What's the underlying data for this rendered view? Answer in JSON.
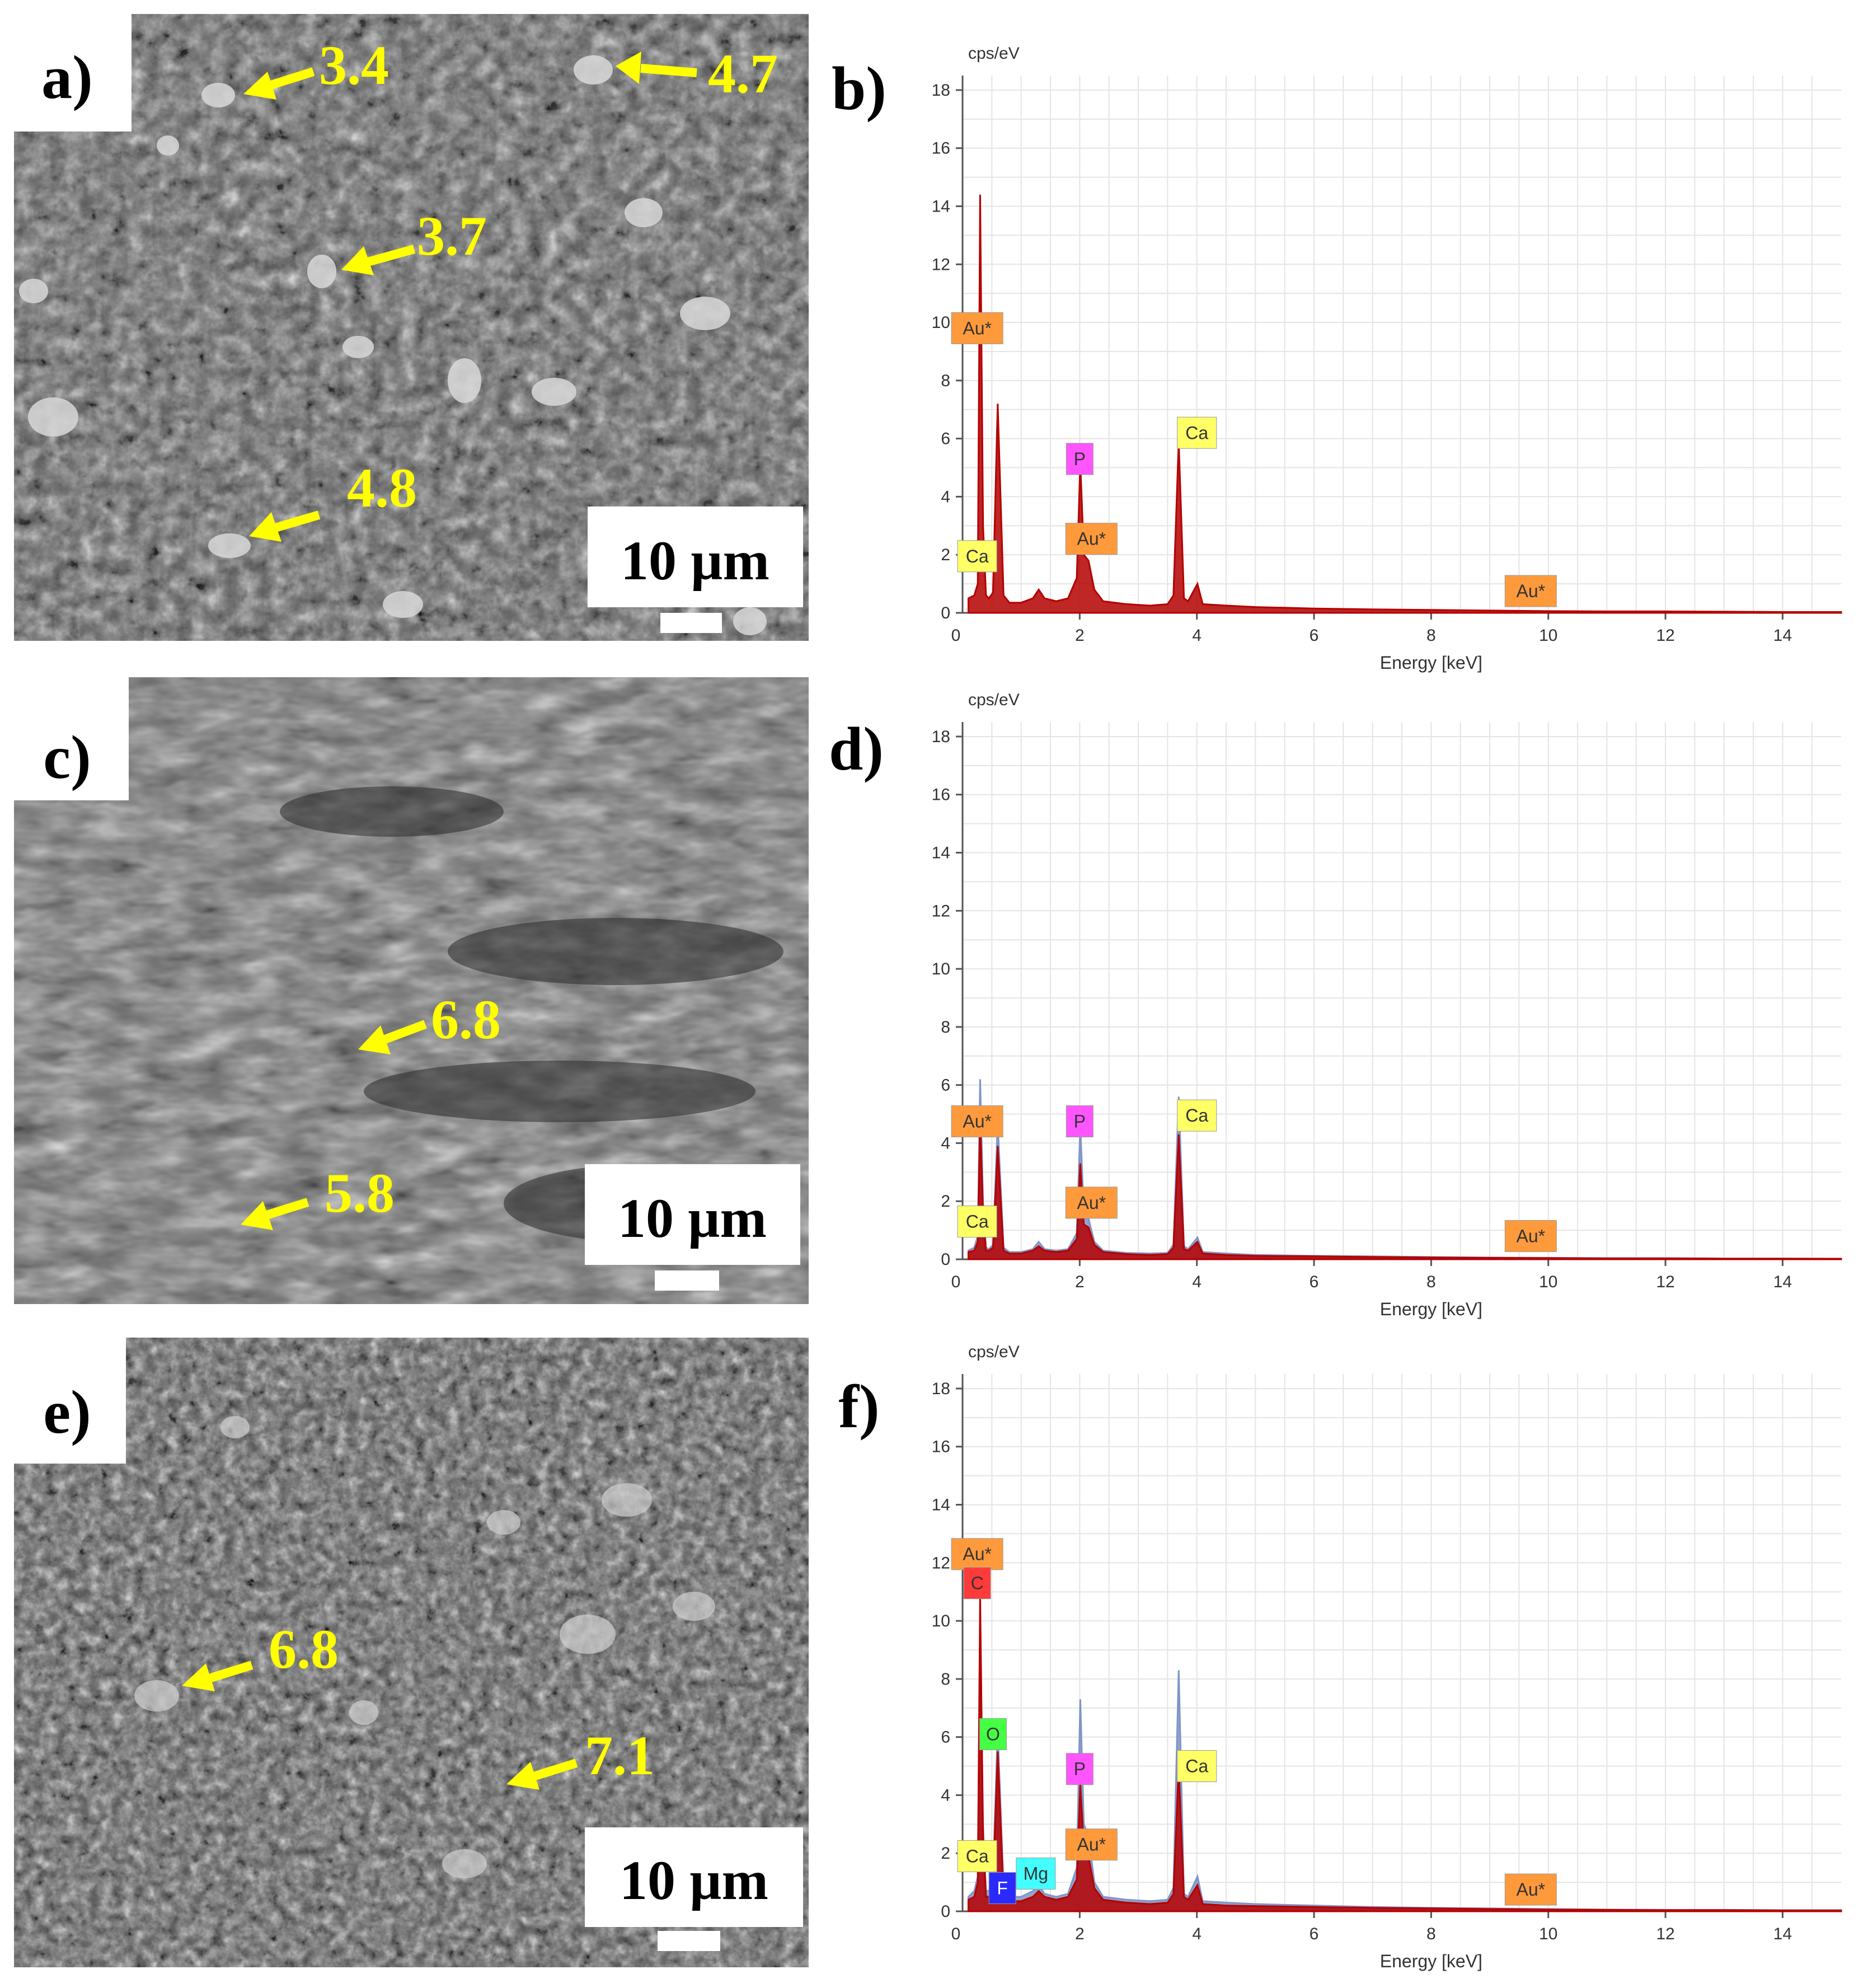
{
  "panels": [
    {
      "label": "a)",
      "scale_bar": "10 µm",
      "arrows": [
        {
          "label": "3.4"
        },
        {
          "label": "4.7"
        },
        {
          "label": "3.7"
        },
        {
          "label": "4.8"
        }
      ]
    },
    {
      "label": "c)",
      "scale_bar": "10 µm",
      "arrows": [
        {
          "label": "6.8"
        },
        {
          "label": "5.8"
        }
      ]
    },
    {
      "label": "e)",
      "scale_bar": "10 µm",
      "arrows": [
        {
          "label": "6.8"
        },
        {
          "label": "7.1"
        }
      ]
    }
  ],
  "spectra_labels": [
    "b)",
    "d)",
    "f)"
  ],
  "colors": {
    "arrow": "#ffff00",
    "spectrum_red": "#b40000",
    "spectrum_blue": "#7f95c8",
    "grid": "#e4e4e4",
    "tag_Au": "#ff9a3c",
    "tag_Ca": "#ffff66",
    "tag_P": "#ff55ff",
    "tag_C": "#ff3a3a",
    "tag_O": "#44ff44",
    "tag_F": "#2a2aff",
    "tag_Mg": "#44ffff"
  },
  "chart_data": [
    {
      "type": "line",
      "panel": "b)",
      "xlabel": "Energy [keV]",
      "ylabel": "cps/eV",
      "xlim": [
        0,
        15
      ],
      "ylim": [
        0,
        18.5
      ],
      "xticks": [
        2,
        4,
        6,
        8,
        10,
        12,
        14
      ],
      "yticks": [
        0,
        2,
        4,
        6,
        8,
        10,
        12,
        14,
        16,
        18
      ],
      "grid": true,
      "series": [
        {
          "color": "red",
          "x": [
            0.1,
            0.2,
            0.26,
            0.3,
            0.35,
            0.4,
            0.45,
            0.52,
            0.6,
            0.7,
            0.8,
            1.0,
            1.2,
            1.3,
            1.4,
            1.6,
            1.8,
            1.95,
            2.01,
            2.07,
            2.15,
            2.25,
            2.4,
            2.8,
            3.2,
            3.5,
            3.6,
            3.69,
            3.78,
            3.85,
            4.01,
            4.1,
            4.5,
            5.0,
            6.0,
            7.0,
            8.0,
            9.0,
            10.0,
            11.0,
            12.0,
            13.0,
            14.0,
            15.0
          ],
          "y": [
            0.5,
            0.6,
            1.0,
            14.4,
            3.0,
            0.6,
            0.5,
            0.7,
            7.2,
            0.6,
            0.35,
            0.35,
            0.5,
            0.8,
            0.5,
            0.4,
            0.5,
            1.2,
            5.2,
            2.0,
            1.8,
            0.8,
            0.4,
            0.3,
            0.25,
            0.3,
            0.6,
            5.9,
            0.5,
            0.4,
            1.0,
            0.3,
            0.25,
            0.2,
            0.15,
            0.12,
            0.1,
            0.08,
            0.06,
            0.05,
            0.05,
            0.04,
            0.03,
            0.03
          ]
        }
      ],
      "annotations": [
        {
          "text": "Au*",
          "x": 0.25,
          "y": 9.8,
          "tag": "Au"
        },
        {
          "text": "Ca",
          "x": 0.25,
          "y": 1.95,
          "tag": "Ca"
        },
        {
          "text": "P",
          "x": 2.0,
          "y": 5.3,
          "tag": "P"
        },
        {
          "text": "Au*",
          "x": 2.2,
          "y": 2.55,
          "tag": "Au"
        },
        {
          "text": "Ca",
          "x": 4.0,
          "y": 6.2,
          "tag": "Ca"
        },
        {
          "text": "Au*",
          "x": 9.7,
          "y": 0.75,
          "tag": "Au"
        }
      ]
    },
    {
      "type": "line",
      "panel": "d)",
      "xlabel": "Energy [keV]",
      "ylabel": "cps/eV",
      "xlim": [
        0,
        15
      ],
      "ylim": [
        0,
        18.5
      ],
      "xticks": [
        2,
        4,
        6,
        8,
        10,
        12,
        14
      ],
      "yticks": [
        0,
        2,
        4,
        6,
        8,
        10,
        12,
        14,
        16,
        18
      ],
      "grid": true,
      "series": [
        {
          "color": "blue",
          "x": [
            0.1,
            0.2,
            0.26,
            0.3,
            0.35,
            0.4,
            0.45,
            0.52,
            0.6,
            0.7,
            0.8,
            1.0,
            1.2,
            1.3,
            1.4,
            1.6,
            1.8,
            1.95,
            2.01,
            2.07,
            2.15,
            2.25,
            2.4,
            2.8,
            3.2,
            3.5,
            3.6,
            3.69,
            3.78,
            3.85,
            4.01,
            4.1,
            4.5,
            5.0,
            6.0,
            7.0,
            8.0,
            9.0,
            10.0,
            11.0,
            12.0,
            13.0,
            14.0,
            15.0
          ],
          "y": [
            0.3,
            0.4,
            0.8,
            6.2,
            2.0,
            0.4,
            0.35,
            0.5,
            4.7,
            0.4,
            0.25,
            0.25,
            0.35,
            0.6,
            0.35,
            0.3,
            0.35,
            0.9,
            4.6,
            1.6,
            1.4,
            0.6,
            0.3,
            0.22,
            0.2,
            0.22,
            0.5,
            5.6,
            0.45,
            0.35,
            0.75,
            0.25,
            0.2,
            0.15,
            0.12,
            0.1,
            0.08,
            0.06,
            0.05,
            0.04,
            0.04,
            0.03,
            0.03,
            0.02
          ]
        },
        {
          "color": "red",
          "x": [
            0.1,
            0.2,
            0.26,
            0.3,
            0.35,
            0.4,
            0.45,
            0.52,
            0.6,
            0.7,
            0.8,
            1.0,
            1.2,
            1.3,
            1.4,
            1.6,
            1.8,
            1.95,
            2.01,
            2.07,
            2.15,
            2.25,
            2.4,
            2.8,
            3.2,
            3.5,
            3.6,
            3.69,
            3.78,
            3.85,
            4.01,
            4.1,
            4.5,
            5.0,
            6.0,
            7.0,
            8.0,
            9.0,
            10.0,
            11.0,
            12.0,
            13.0,
            14.0,
            15.0
          ],
          "y": [
            0.25,
            0.3,
            0.6,
            4.9,
            1.5,
            0.3,
            0.3,
            0.4,
            3.9,
            0.3,
            0.2,
            0.2,
            0.3,
            0.45,
            0.3,
            0.25,
            0.3,
            0.7,
            3.3,
            1.2,
            1.1,
            0.5,
            0.25,
            0.18,
            0.15,
            0.18,
            0.4,
            4.3,
            0.35,
            0.3,
            0.6,
            0.2,
            0.15,
            0.12,
            0.1,
            0.08,
            0.06,
            0.05,
            0.04,
            0.03,
            0.03,
            0.02,
            0.02,
            0.02
          ]
        }
      ],
      "annotations": [
        {
          "text": "Au*",
          "x": 0.25,
          "y": 4.75,
          "tag": "Au"
        },
        {
          "text": "Ca",
          "x": 0.25,
          "y": 1.3,
          "tag": "Ca"
        },
        {
          "text": "P",
          "x": 2.0,
          "y": 4.75,
          "tag": "P"
        },
        {
          "text": "Au*",
          "x": 2.2,
          "y": 1.95,
          "tag": "Au"
        },
        {
          "text": "Ca",
          "x": 4.0,
          "y": 4.95,
          "tag": "Ca"
        },
        {
          "text": "Au*",
          "x": 9.7,
          "y": 0.8,
          "tag": "Au"
        }
      ]
    },
    {
      "type": "line",
      "panel": "f)",
      "xlabel": "Energy [keV]",
      "ylabel": "cps/eV",
      "xlim": [
        0,
        15
      ],
      "ylim": [
        0,
        18.5
      ],
      "xticks": [
        2,
        4,
        6,
        8,
        10,
        12,
        14
      ],
      "yticks": [
        0,
        2,
        4,
        6,
        8,
        10,
        12,
        14,
        16,
        18
      ],
      "grid": true,
      "series": [
        {
          "color": "blue",
          "x": [
            0.1,
            0.2,
            0.26,
            0.3,
            0.35,
            0.4,
            0.45,
            0.52,
            0.6,
            0.7,
            0.8,
            1.0,
            1.2,
            1.3,
            1.4,
            1.6,
            1.8,
            1.95,
            2.01,
            2.07,
            2.15,
            2.25,
            2.4,
            2.8,
            3.2,
            3.5,
            3.6,
            3.69,
            3.78,
            3.85,
            4.01,
            4.1,
            4.5,
            5.0,
            6.0,
            7.0,
            8.0,
            9.0,
            10.0,
            11.0,
            12.0,
            13.0,
            14.0,
            15.0
          ],
          "y": [
            0.5,
            0.7,
            1.2,
            10.0,
            3.0,
            0.7,
            0.7,
            1.2,
            6.3,
            0.8,
            0.5,
            0.5,
            0.7,
            0.9,
            0.6,
            0.5,
            0.6,
            1.5,
            7.3,
            3.0,
            2.6,
            1.0,
            0.5,
            0.4,
            0.35,
            0.4,
            0.8,
            8.3,
            0.6,
            0.5,
            1.2,
            0.35,
            0.3,
            0.25,
            0.2,
            0.15,
            0.12,
            0.1,
            0.08,
            0.06,
            0.05,
            0.05,
            0.04,
            0.04
          ]
        },
        {
          "color": "red",
          "x": [
            0.1,
            0.2,
            0.26,
            0.3,
            0.35,
            0.4,
            0.45,
            0.52,
            0.6,
            0.7,
            0.8,
            1.0,
            1.2,
            1.3,
            1.4,
            1.6,
            1.8,
            1.95,
            2.01,
            2.07,
            2.15,
            2.25,
            2.4,
            2.8,
            3.2,
            3.5,
            3.6,
            3.69,
            3.78,
            3.85,
            4.01,
            4.1,
            4.5,
            5.0,
            6.0,
            7.0,
            8.0,
            9.0,
            10.0,
            11.0,
            12.0,
            13.0,
            14.0,
            15.0
          ],
          "y": [
            0.4,
            0.5,
            1.0,
            10.9,
            2.5,
            0.5,
            0.5,
            0.9,
            5.5,
            0.6,
            0.35,
            0.35,
            0.5,
            0.7,
            0.5,
            0.4,
            0.5,
            1.1,
            4.4,
            2.2,
            1.9,
            0.8,
            0.4,
            0.3,
            0.25,
            0.3,
            0.6,
            5.0,
            0.5,
            0.4,
            0.9,
            0.25,
            0.2,
            0.18,
            0.15,
            0.12,
            0.1,
            0.08,
            0.06,
            0.05,
            0.04,
            0.04,
            0.03,
            0.03
          ]
        }
      ],
      "annotations": [
        {
          "text": "Au*",
          "x": 0.25,
          "y": 12.3,
          "tag": "Au"
        },
        {
          "text": "C",
          "x": 0.25,
          "y": 11.3,
          "tag": "C"
        },
        {
          "text": "O",
          "x": 0.52,
          "y": 6.1,
          "tag": "O"
        },
        {
          "text": "Ca",
          "x": 0.25,
          "y": 1.9,
          "tag": "Ca"
        },
        {
          "text": "F",
          "x": 0.68,
          "y": 0.8,
          "tag": "F"
        },
        {
          "text": "Mg",
          "x": 1.25,
          "y": 1.3,
          "tag": "Mg"
        },
        {
          "text": "P",
          "x": 2.0,
          "y": 4.9,
          "tag": "P"
        },
        {
          "text": "Au*",
          "x": 2.2,
          "y": 2.3,
          "tag": "Au"
        },
        {
          "text": "Ca",
          "x": 4.0,
          "y": 5.0,
          "tag": "Ca"
        },
        {
          "text": "Au*",
          "x": 9.7,
          "y": 0.75,
          "tag": "Au"
        }
      ]
    }
  ]
}
